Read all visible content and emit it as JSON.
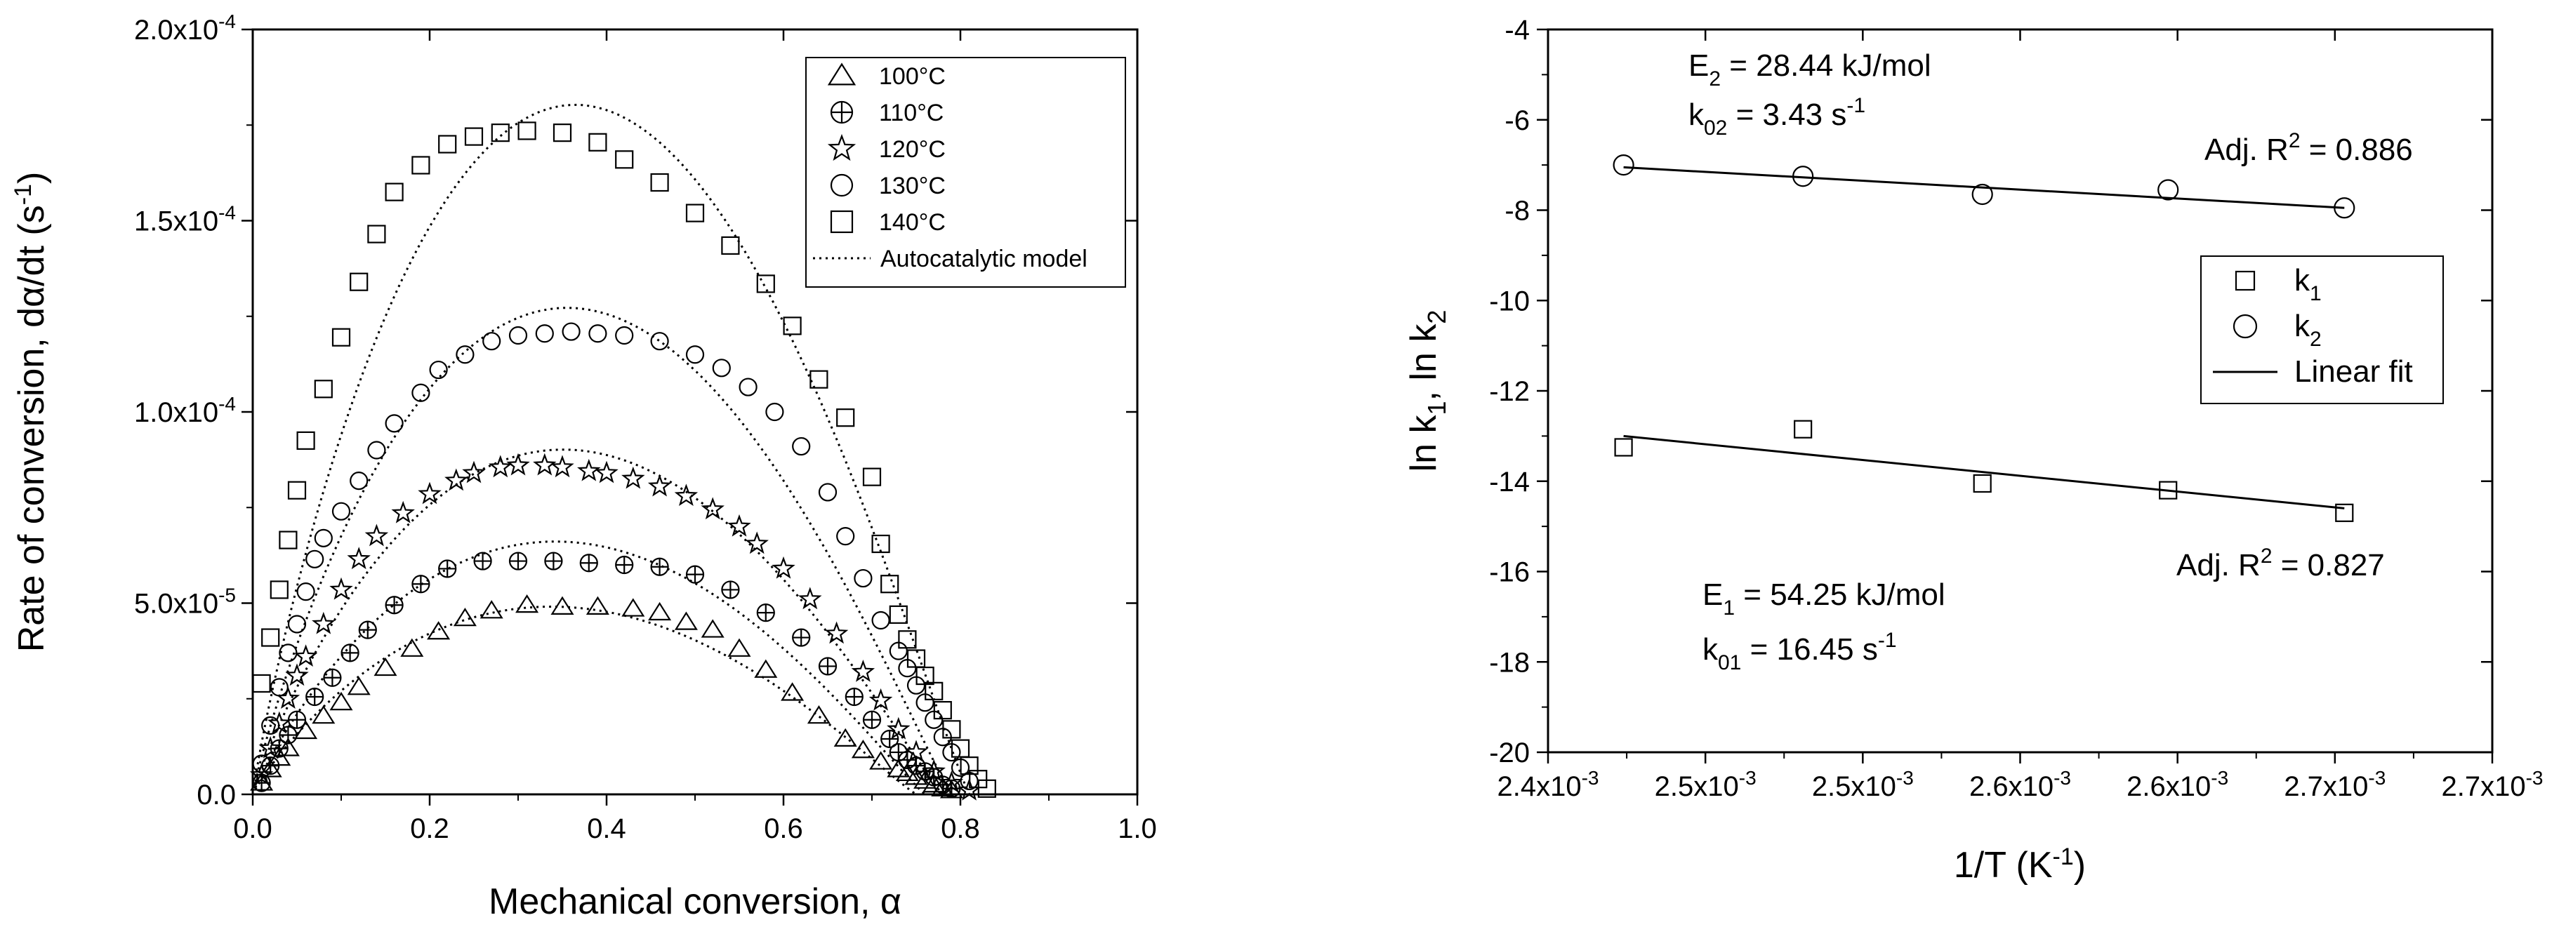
{
  "chart_data": [
    {
      "type": "scatter",
      "xlabel": "Mechanical conversion, α",
      "ylabel": "Rate of conversion, dα/dt (s-1)",
      "xlim": [
        0.0,
        1.0
      ],
      "ylim": [
        0.0,
        0.0002
      ],
      "x_ticks": [
        {
          "value": 0.0,
          "label": "0.0"
        },
        {
          "value": 0.2,
          "label": "0.2"
        },
        {
          "value": 0.4,
          "label": "0.4"
        },
        {
          "value": 0.6,
          "label": "0.6"
        },
        {
          "value": 0.8,
          "label": "0.8"
        },
        {
          "value": 1.0,
          "label": "1.0"
        }
      ],
      "y_ticks": [
        {
          "value": 0.0,
          "label": "0.0",
          "mant": "0.0",
          "exp": ""
        },
        {
          "value": 5e-05,
          "label": "5.0x10-5",
          "mant": "5.0x10",
          "exp": "-5"
        },
        {
          "value": 0.0001,
          "label": "1.0x10-4",
          "mant": "1.0x10",
          "exp": "-4"
        },
        {
          "value": 0.00015,
          "label": "1.5x10-4",
          "mant": "1.5x10",
          "exp": "-4"
        },
        {
          "value": 0.0002,
          "label": "2.0x10-4",
          "mant": "2.0x10",
          "exp": "-4"
        }
      ],
      "grid": false,
      "legend_position": "top-right",
      "series": [
        {
          "name": "100°C",
          "marker": "triangle",
          "x": [
            0.01,
            0.02,
            0.03,
            0.04,
            0.06,
            0.08,
            0.1,
            0.12,
            0.15,
            0.18,
            0.21,
            0.24,
            0.27,
            0.31,
            0.35,
            0.39,
            0.43,
            0.46,
            0.49,
            0.52,
            0.55,
            0.58,
            0.61,
            0.64,
            0.67,
            0.69,
            0.71,
            0.73,
            0.74,
            0.75,
            0.76,
            0.77,
            0.78,
            0.79
          ],
          "y": [
            3e-06,
            6.5e-06,
            9.5e-06,
            1.2e-05,
            1.65e-05,
            2.05e-05,
            2.4e-05,
            2.8e-05,
            3.3e-05,
            3.8e-05,
            4.25e-05,
            4.6e-05,
            4.8e-05,
            4.95e-05,
            4.9e-05,
            4.9e-05,
            4.85e-05,
            4.75e-05,
            4.5e-05,
            4.3e-05,
            3.8e-05,
            3.25e-05,
            2.65e-05,
            2.05e-05,
            1.45e-05,
            1.15e-05,
            8.5e-06,
            6.5e-06,
            5.5e-06,
            4.5e-06,
            3.5e-06,
            2.5e-06,
            1.5e-06,
            1e-06
          ]
        },
        {
          "name": "110°C",
          "marker": "circle-plus",
          "x": [
            0.01,
            0.02,
            0.03,
            0.04,
            0.05,
            0.07,
            0.09,
            0.11,
            0.13,
            0.16,
            0.19,
            0.22,
            0.26,
            0.3,
            0.34,
            0.38,
            0.42,
            0.46,
            0.5,
            0.54,
            0.58,
            0.62,
            0.65,
            0.68,
            0.7,
            0.72,
            0.73,
            0.74,
            0.75,
            0.76,
            0.77,
            0.78,
            0.79
          ],
          "y": [
            3e-06,
            7.5e-06,
            1.2e-05,
            1.55e-05,
            1.95e-05,
            2.55e-05,
            3.05e-05,
            3.7e-05,
            4.3e-05,
            4.95e-05,
            5.5e-05,
            5.9e-05,
            6.1e-05,
            6.1e-05,
            6.1e-05,
            6.05e-05,
            6e-05,
            5.95e-05,
            5.75e-05,
            5.35e-05,
            4.75e-05,
            4.1e-05,
            3.35e-05,
            2.55e-05,
            1.95e-05,
            1.45e-05,
            1.1e-05,
            9e-06,
            7.5e-06,
            6e-06,
            4.5e-06,
            2.5e-06,
            1.5e-06
          ]
        },
        {
          "name": "120°C",
          "marker": "star",
          "x": [
            0.01,
            0.02,
            0.03,
            0.04,
            0.05,
            0.06,
            0.08,
            0.1,
            0.12,
            0.14,
            0.17,
            0.2,
            0.23,
            0.25,
            0.28,
            0.3,
            0.33,
            0.35,
            0.38,
            0.4,
            0.43,
            0.46,
            0.49,
            0.52,
            0.55,
            0.57,
            0.6,
            0.63,
            0.66,
            0.69,
            0.71,
            0.73,
            0.75,
            0.77,
            0.79,
            0.81
          ],
          "y": [
            5e-06,
            1.2e-05,
            1.85e-05,
            2.5e-05,
            3.1e-05,
            3.6e-05,
            4.45e-05,
            5.35e-05,
            6.15e-05,
            6.75e-05,
            7.35e-05,
            7.85e-05,
            8.2e-05,
            8.4e-05,
            8.55e-05,
            8.6e-05,
            8.6e-05,
            8.55e-05,
            8.45e-05,
            8.4e-05,
            8.25e-05,
            8.05e-05,
            7.8e-05,
            7.45e-05,
            7e-05,
            6.55e-05,
            5.9e-05,
            5.1e-05,
            4.2e-05,
            3.2e-05,
            2.45e-05,
            1.7e-05,
            1.1e-05,
            6e-06,
            3e-06,
            1e-06
          ]
        },
        {
          "name": "130°C",
          "marker": "circle",
          "x": [
            0.01,
            0.02,
            0.03,
            0.04,
            0.05,
            0.06,
            0.07,
            0.08,
            0.1,
            0.12,
            0.14,
            0.16,
            0.19,
            0.21,
            0.24,
            0.27,
            0.3,
            0.33,
            0.36,
            0.39,
            0.42,
            0.46,
            0.5,
            0.53,
            0.56,
            0.59,
            0.62,
            0.65,
            0.67,
            0.69,
            0.71,
            0.73,
            0.74,
            0.75,
            0.76,
            0.77,
            0.78,
            0.79,
            0.8,
            0.81
          ],
          "y": [
            8e-06,
            1.8e-05,
            2.8e-05,
            3.7e-05,
            4.45e-05,
            5.3e-05,
            6.15e-05,
            6.7e-05,
            7.4e-05,
            8.2e-05,
            9e-05,
            9.7e-05,
            0.000105,
            0.000111,
            0.000115,
            0.0001185,
            0.00012,
            0.0001205,
            0.000121,
            0.0001205,
            0.00012,
            0.0001185,
            0.000115,
            0.0001115,
            0.0001065,
            0.0001,
            9.1e-05,
            7.9e-05,
            6.75e-05,
            5.65e-05,
            4.55e-05,
            3.75e-05,
            3.3e-05,
            2.85e-05,
            2.4e-05,
            1.95e-05,
            1.5e-05,
            1.1e-05,
            7e-06,
            3.5e-06
          ]
        },
        {
          "name": "140°C",
          "marker": "square",
          "x": [
            0.01,
            0.02,
            0.03,
            0.04,
            0.05,
            0.06,
            0.08,
            0.1,
            0.12,
            0.14,
            0.16,
            0.19,
            0.22,
            0.25,
            0.28,
            0.31,
            0.35,
            0.39,
            0.42,
            0.46,
            0.5,
            0.54,
            0.58,
            0.61,
            0.64,
            0.67,
            0.7,
            0.71,
            0.72,
            0.73,
            0.74,
            0.75,
            0.76,
            0.77,
            0.78,
            0.79,
            0.8,
            0.81,
            0.82,
            0.83
          ],
          "y": [
            2.9e-05,
            4.1e-05,
            5.35e-05,
            6.65e-05,
            7.95e-05,
            9.25e-05,
            0.000106,
            0.0001195,
            0.000134,
            0.0001465,
            0.0001575,
            0.0001645,
            0.00017,
            0.000172,
            0.000173,
            0.0001735,
            0.000173,
            0.0001705,
            0.000166,
            0.00016,
            0.000152,
            0.0001435,
            0.0001335,
            0.0001225,
            0.0001085,
            9.85e-05,
            8.3e-05,
            6.55e-05,
            5.5e-05,
            4.7e-05,
            4.05e-05,
            3.55e-05,
            3.1e-05,
            2.7e-05,
            2.2e-05,
            1.7e-05,
            1.2e-05,
            7.5e-06,
            4e-06,
            1.5e-06
          ]
        }
      ],
      "model_curves": [
        {
          "name": "Autocatalytic model",
          "style": "dotted",
          "curves": [
            {
              "for": "100°C",
              "x_end": 0.75,
              "peak": 4.9e-05
            },
            {
              "for": "110°C",
              "x_end": 0.76,
              "peak": 6.6e-05
            },
            {
              "for": "120°C",
              "x_end": 0.78,
              "peak": 9e-05
            },
            {
              "for": "130°C",
              "x_end": 0.79,
              "peak": 0.000127
            },
            {
              "for": "140°C",
              "x_end": 0.81,
              "peak": 0.00018
            }
          ]
        }
      ],
      "legend": [
        {
          "label": "100°C",
          "marker": "triangle"
        },
        {
          "label": "110°C",
          "marker": "circle-plus"
        },
        {
          "label": "120°C",
          "marker": "star"
        },
        {
          "label": "130°C",
          "marker": "circle"
        },
        {
          "label": "140°C",
          "marker": "square"
        },
        {
          "label": "Autocatalytic model",
          "marker": "dotted-line"
        }
      ]
    },
    {
      "type": "scatter",
      "xlabel": "1/T (K-1)",
      "ylabel": "ln k1, ln k2",
      "xlim": [
        0.0024,
        0.0027
      ],
      "ylim": [
        -20,
        -4
      ],
      "x_ticks": [
        {
          "value": 0.0024,
          "label": "2.4x10-3",
          "mant": "2.4x10",
          "exp": "-3"
        },
        {
          "value": 0.00245,
          "label": "2.5x10-3",
          "mant": "2.5x10",
          "exp": "-3"
        },
        {
          "value": 0.0025,
          "label": "2.5x10-3",
          "mant": "2.5x10",
          "exp": "-3"
        },
        {
          "value": 0.00255,
          "label": "2.6x10-3",
          "mant": "2.6x10",
          "exp": "-3"
        },
        {
          "value": 0.0026,
          "label": "2.6x10-3",
          "mant": "2.6x10",
          "exp": "-3"
        },
        {
          "value": 0.00265,
          "label": "2.7x10-3",
          "mant": "2.7x10",
          "exp": "-3"
        },
        {
          "value": 0.0027,
          "label": "2.7x10-3",
          "mant": "2.7x10",
          "exp": "-3"
        }
      ],
      "y_ticks": [
        -20,
        -18,
        -16,
        -14,
        -12,
        -10,
        -8,
        -6,
        -4
      ],
      "grid": false,
      "legend_position": "right",
      "series": [
        {
          "name": "k1",
          "marker": "square",
          "x": [
            0.002424,
            0.002481,
            0.002538,
            0.002597,
            0.002653
          ],
          "y": [
            -13.25,
            -12.85,
            -14.05,
            -14.2,
            -14.7
          ]
        },
        {
          "name": "k2",
          "marker": "circle",
          "x": [
            0.002424,
            0.002481,
            0.002538,
            0.002597,
            0.002653
          ],
          "y": [
            -7.0,
            -7.25,
            -7.65,
            -7.55,
            -7.95
          ]
        }
      ],
      "fits": [
        {
          "name": "Linear fit",
          "for": "k1",
          "x": [
            0.002424,
            0.002653
          ],
          "y": [
            -13.0,
            -14.6
          ]
        },
        {
          "name": "Linear fit",
          "for": "k2",
          "x": [
            0.002424,
            0.002653
          ],
          "y": [
            -7.05,
            -7.95
          ]
        }
      ],
      "annotations": {
        "e2": {
          "pre": "E",
          "sub": "2",
          "post": " = 28.44 kJ/mol"
        },
        "k02": {
          "pre": "k",
          "sub": "02",
          "post": " = 3.43 s",
          "sup": "-1"
        },
        "r2_upper": {
          "pre": "Adj. R",
          "sup": "2",
          "post": " = 0.886"
        },
        "r2_lower": {
          "pre": "Adj. R",
          "sup": "2",
          "post": " = 0.827"
        },
        "e1": {
          "pre": "E",
          "sub": "1",
          "post": " = 54.25 kJ/mol"
        },
        "k01": {
          "pre": "k",
          "sub": "01",
          "post": " = 16.45 s",
          "sup": "-1"
        }
      },
      "legend": [
        {
          "label": "k1",
          "pre": "k",
          "sub": "1",
          "marker": "square"
        },
        {
          "label": "k2",
          "pre": "k",
          "sub": "2",
          "marker": "circle"
        },
        {
          "label": "Linear fit",
          "pre": "Linear fit",
          "sub": "",
          "marker": "line"
        }
      ]
    }
  ]
}
